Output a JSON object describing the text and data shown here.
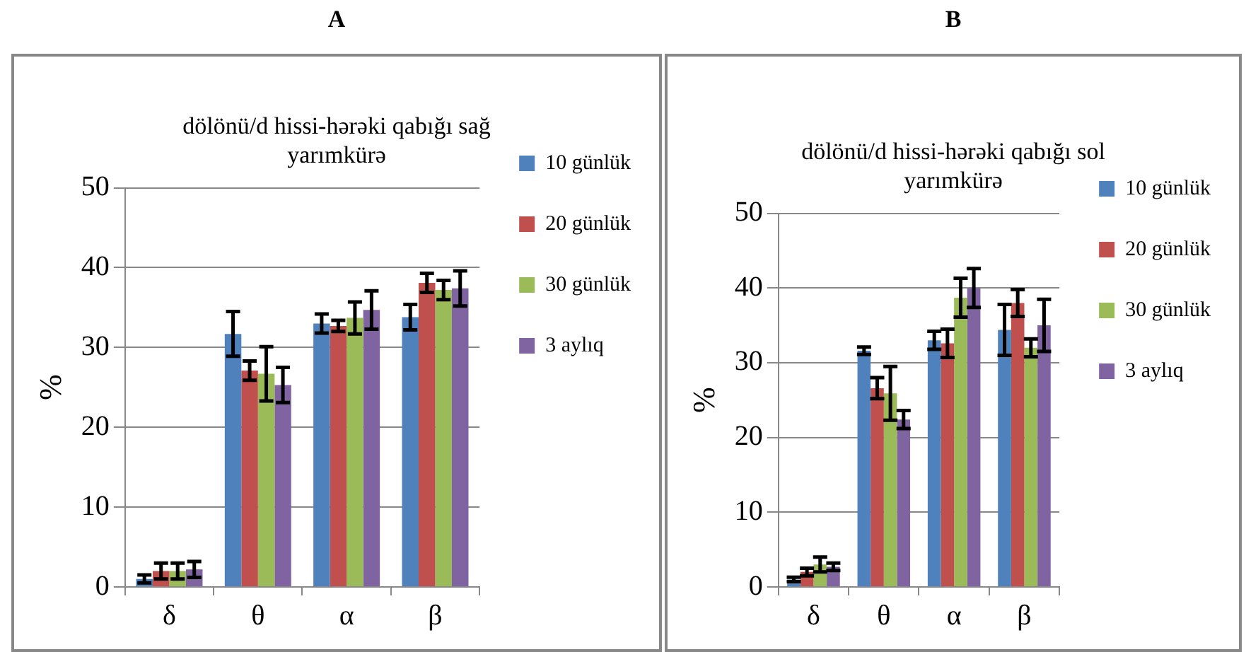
{
  "chart_data": [
    {
      "type": "bar",
      "title": "dölönü/d hissi-hərəki qabığı sağ yarımkürə",
      "subtitle": "A",
      "ylabel": "%",
      "categories": [
        "δ",
        "θ",
        "α",
        "β"
      ],
      "series": [
        {
          "name": "10 günlük",
          "color": "#4f81bd",
          "values": [
            1,
            31.7,
            33,
            33.8
          ],
          "errors": [
            0.5,
            2.8,
            1.2,
            1.6
          ]
        },
        {
          "name": "20 günlük",
          "color": "#c0504d",
          "values": [
            2,
            27.1,
            32.7,
            38.1
          ],
          "errors": [
            1,
            1.2,
            0.7,
            1.2
          ]
        },
        {
          "name": "30 günlük",
          "color": "#9bbb59",
          "values": [
            2,
            26.7,
            33.7,
            37.2
          ],
          "errors": [
            1,
            3.4,
            2,
            1.2
          ]
        },
        {
          "name": "3 aylıq",
          "color": "#8064a2",
          "values": [
            2.2,
            25.3,
            34.7,
            37.4
          ],
          "errors": [
            1,
            2.2,
            2.4,
            2.2
          ]
        }
      ],
      "ylim": [
        0,
        50
      ],
      "yticks": [
        0,
        10,
        20,
        30,
        40,
        50
      ],
      "grid": "y",
      "legend": "right"
    },
    {
      "type": "bar",
      "title": "dölönü/d hissi-hərəki qabığı sol yarımkürə",
      "subtitle": "B",
      "ylabel": "%",
      "categories": [
        "δ",
        "θ",
        "α",
        "β"
      ],
      "series": [
        {
          "name": "10 günlük",
          "color": "#4f81bd",
          "values": [
            1,
            31.6,
            33,
            34.4
          ],
          "errors": [
            0.3,
            0.5,
            1.2,
            3.4
          ]
        },
        {
          "name": "20 günlük",
          "color": "#c0504d",
          "values": [
            2,
            26.6,
            32.6,
            38
          ],
          "errors": [
            0.5,
            1.4,
            1.9,
            1.8
          ]
        },
        {
          "name": "30 günlük",
          "color": "#9bbb59",
          "values": [
            3,
            25.9,
            38.7,
            32
          ],
          "errors": [
            1,
            3.6,
            2.6,
            1.2
          ]
        },
        {
          "name": "3 aylıq",
          "color": "#8064a2",
          "values": [
            2.7,
            22.4,
            40,
            35
          ],
          "errors": [
            0.5,
            1.2,
            2.6,
            3.5
          ]
        }
      ],
      "ylim": [
        0,
        50
      ],
      "yticks": [
        0,
        10,
        20,
        30,
        40,
        50
      ],
      "grid": "y",
      "legend": "right"
    }
  ]
}
